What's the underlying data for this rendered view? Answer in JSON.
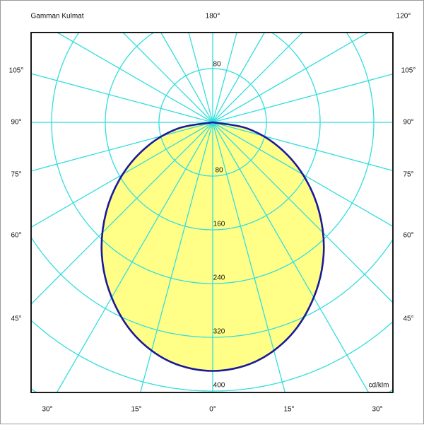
{
  "chart_data": {
    "type": "polar",
    "title": "Gamman Kulmat",
    "unit_label": "cd/klm",
    "radial_ticks": [
      80,
      160,
      240,
      320,
      400
    ],
    "radial_tick_label_top": "80",
    "angle_step_deg": 15,
    "angle_labels": {
      "top_center": "180°",
      "top_right": "120°",
      "left": [
        "105°",
        "90°",
        "75°",
        "60°",
        "45°"
      ],
      "right": [
        "105°",
        "90°",
        "75°",
        "60°",
        "45°"
      ],
      "bottom": [
        "30°",
        "15°",
        "0°",
        "15°",
        "30°"
      ]
    },
    "series": [
      {
        "angles_deg": [
          0,
          10,
          20,
          30,
          40,
          50,
          60,
          70,
          80,
          90
        ],
        "intensity": [
          370,
          362,
          338,
          301,
          257,
          207,
          155,
          103,
          52,
          0
        ],
        "symmetric": true
      }
    ],
    "colors": {
      "grid": "#33dddd",
      "curve": "#1a1a99",
      "fill": "#ffff88",
      "frame": "#000000"
    }
  }
}
